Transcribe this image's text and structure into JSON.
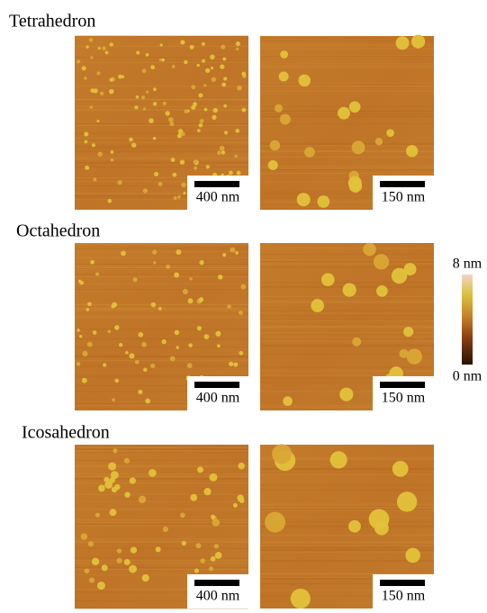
{
  "panels": [
    {
      "title": "Tetrahedron",
      "images": [
        {
          "scale_label": "400 nm"
        },
        {
          "scale_label": "150 nm"
        }
      ]
    },
    {
      "title": "Octahedron",
      "images": [
        {
          "scale_label": "400 nm"
        },
        {
          "scale_label": "150 nm"
        }
      ]
    },
    {
      "title": "Icosahedron",
      "images": [
        {
          "scale_label": "400 nm"
        },
        {
          "scale_label": "150 nm"
        }
      ]
    }
  ],
  "colorbar": {
    "max_label": "8 nm",
    "min_label": "0 nm"
  }
}
